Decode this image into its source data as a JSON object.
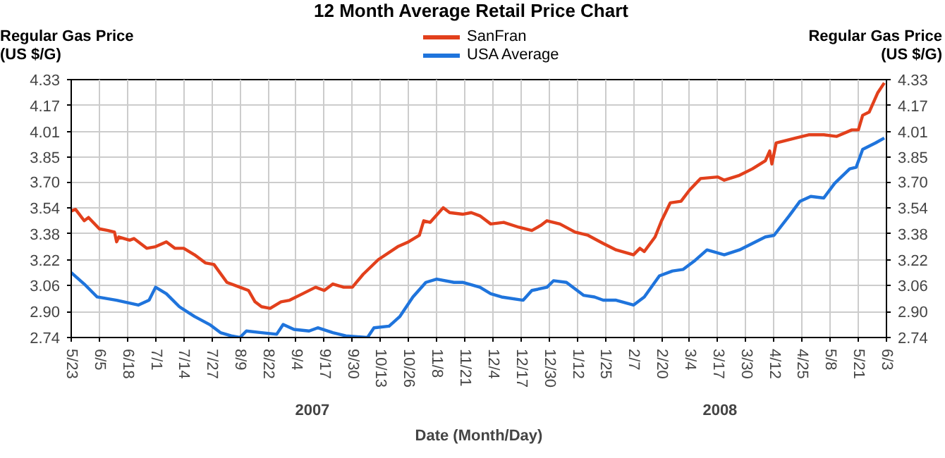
{
  "chart_data": {
    "type": "line",
    "title": "12 Month Average Retail Price Chart",
    "xlabel": "Date (Month/Day)",
    "ylabel": "Regular Gas Price (US $/G)",
    "y2label": "Regular Gas Price (US $/G)",
    "annotations": [
      "2007",
      "2008"
    ],
    "xlim": [
      "2007-05-23",
      "2008-06-03"
    ],
    "xticks": [
      {
        "value": "2007-05-23",
        "label": "5/23"
      },
      {
        "value": "2007-06-05",
        "label": "6/5"
      },
      {
        "value": "2007-06-18",
        "label": "6/18"
      },
      {
        "value": "2007-07-01",
        "label": "7/1"
      },
      {
        "value": "2007-07-14",
        "label": "7/14"
      },
      {
        "value": "2007-07-27",
        "label": "7/27"
      },
      {
        "value": "2007-08-09",
        "label": "8/9"
      },
      {
        "value": "2007-08-22",
        "label": "8/22"
      },
      {
        "value": "2007-09-04",
        "label": "9/4"
      },
      {
        "value": "2007-09-17",
        "label": "9/17"
      },
      {
        "value": "2007-09-30",
        "label": "9/30"
      },
      {
        "value": "2007-10-13",
        "label": "10/13"
      },
      {
        "value": "2007-10-26",
        "label": "10/26"
      },
      {
        "value": "2007-11-08",
        "label": "11/8"
      },
      {
        "value": "2007-11-21",
        "label": "11/21"
      },
      {
        "value": "2007-12-04",
        "label": "12/4"
      },
      {
        "value": "2007-12-17",
        "label": "12/17"
      },
      {
        "value": "2007-12-30",
        "label": "12/30"
      },
      {
        "value": "2008-01-12",
        "label": "1/12"
      },
      {
        "value": "2008-01-25",
        "label": "1/25"
      },
      {
        "value": "2008-02-07",
        "label": "2/7"
      },
      {
        "value": "2008-02-20",
        "label": "2/20"
      },
      {
        "value": "2008-03-04",
        "label": "3/4"
      },
      {
        "value": "2008-03-17",
        "label": "3/17"
      },
      {
        "value": "2008-03-30",
        "label": "3/30"
      },
      {
        "value": "2008-04-12",
        "label": "4/12"
      },
      {
        "value": "2008-04-25",
        "label": "4/25"
      },
      {
        "value": "2008-05-08",
        "label": "5/8"
      },
      {
        "value": "2008-05-21",
        "label": "5/21"
      },
      {
        "value": "2008-06-03",
        "label": "6/3"
      }
    ],
    "ylim": [
      2.74,
      4.33
    ],
    "yticks": [
      2.74,
      {
        "value": 2.9,
        "label": "2.90"
      },
      3.06,
      3.22,
      3.38,
      3.54,
      {
        "value": 3.7,
        "label": "3.70"
      },
      3.85,
      4.01,
      4.17,
      4.33
    ],
    "y2lim": [
      2.74,
      4.33
    ],
    "y2ticks": [
      2.74,
      {
        "value": 2.9,
        "label": "2.90"
      },
      3.06,
      3.22,
      3.38,
      3.54,
      {
        "value": 3.7,
        "label": "3.70"
      },
      3.85,
      4.01,
      4.17,
      4.33
    ],
    "grid": true,
    "legend": "top right",
    "line_style": "solid",
    "series": [
      {
        "name": "SanFran",
        "color": "#e2401c",
        "x": [
          "2007-05-23",
          "2007-05-25",
          "2007-05-29",
          "2007-05-31",
          "2007-06-05",
          "2007-06-09",
          "2007-06-12",
          "2007-06-13",
          "2007-06-14",
          "2007-06-19",
          "2007-06-21",
          "2007-06-27",
          "2007-07-01",
          "2007-07-06",
          "2007-07-10",
          "2007-07-14",
          "2007-07-19",
          "2007-07-24",
          "2007-07-28",
          "2007-08-03",
          "2007-08-09",
          "2007-08-13",
          "2007-08-16",
          "2007-08-19",
          "2007-08-23",
          "2007-08-28",
          "2007-09-01",
          "2007-09-07",
          "2007-09-13",
          "2007-09-17",
          "2007-09-21",
          "2007-09-26",
          "2007-09-30",
          "2007-10-05",
          "2007-10-12",
          "2007-10-21",
          "2007-10-26",
          "2007-10-31",
          "2007-11-02",
          "2007-11-05",
          "2007-11-11",
          "2007-11-14",
          "2007-11-20",
          "2007-11-24",
          "2007-11-28",
          "2007-12-03",
          "2007-12-09",
          "2007-12-16",
          "2007-12-22",
          "2007-12-26",
          "2007-12-29",
          "2008-01-04",
          "2008-01-11",
          "2008-01-17",
          "2008-01-24",
          "2008-01-30",
          "2008-02-07",
          "2008-02-10",
          "2008-02-12",
          "2008-02-17",
          "2008-02-20",
          "2008-02-24",
          "2008-02-29",
          "2008-03-04",
          "2008-03-09",
          "2008-03-17",
          "2008-03-20",
          "2008-03-27",
          "2008-04-02",
          "2008-04-08",
          "2008-04-10",
          "2008-04-11",
          "2008-04-13",
          "2008-04-22",
          "2008-04-28",
          "2008-05-05",
          "2008-05-11",
          "2008-05-18",
          "2008-05-21",
          "2008-05-23",
          "2008-05-26",
          "2008-05-30",
          "2008-06-02"
        ],
        "values": [
          3.52,
          3.53,
          3.46,
          3.48,
          3.41,
          3.4,
          3.39,
          3.33,
          3.36,
          3.34,
          3.35,
          3.29,
          3.3,
          3.33,
          3.29,
          3.29,
          3.25,
          3.2,
          3.19,
          3.08,
          3.05,
          3.03,
          2.96,
          2.93,
          2.92,
          2.96,
          2.97,
          3.01,
          3.05,
          3.03,
          3.07,
          3.05,
          3.05,
          3.13,
          3.22,
          3.3,
          3.33,
          3.37,
          3.46,
          3.45,
          3.54,
          3.51,
          3.5,
          3.51,
          3.49,
          3.44,
          3.45,
          3.42,
          3.4,
          3.43,
          3.46,
          3.44,
          3.39,
          3.37,
          3.32,
          3.28,
          3.25,
          3.29,
          3.27,
          3.36,
          3.46,
          3.57,
          3.58,
          3.65,
          3.72,
          3.73,
          3.71,
          3.74,
          3.78,
          3.83,
          3.89,
          3.81,
          3.94,
          3.97,
          3.99,
          3.99,
          3.98,
          4.02,
          4.02,
          4.11,
          4.13,
          4.25,
          4.31
        ]
      },
      {
        "name": "USA Average",
        "color": "#1f74dc",
        "x": [
          "2007-05-23",
          "2007-05-29",
          "2007-06-04",
          "2007-06-13",
          "2007-06-23",
          "2007-06-28",
          "2007-07-01",
          "2007-07-06",
          "2007-07-12",
          "2007-07-19",
          "2007-07-26",
          "2007-07-31",
          "2007-08-05",
          "2007-08-09",
          "2007-08-12",
          "2007-08-19",
          "2007-08-26",
          "2007-08-29",
          "2007-09-03",
          "2007-09-10",
          "2007-09-14",
          "2007-09-21",
          "2007-09-27",
          "2007-10-07",
          "2007-10-10",
          "2007-10-17",
          "2007-10-22",
          "2007-10-28",
          "2007-11-03",
          "2007-11-08",
          "2007-11-16",
          "2007-11-20",
          "2007-11-28",
          "2007-12-03",
          "2007-12-08",
          "2007-12-18",
          "2007-12-22",
          "2007-12-29",
          "2008-01-01",
          "2008-01-07",
          "2008-01-15",
          "2008-01-20",
          "2008-01-24",
          "2008-01-30",
          "2008-02-07",
          "2008-02-12",
          "2008-02-19",
          "2008-02-25",
          "2008-03-01",
          "2008-03-06",
          "2008-03-12",
          "2008-03-20",
          "2008-03-27",
          "2008-04-02",
          "2008-04-08",
          "2008-04-12",
          "2008-04-19",
          "2008-04-24",
          "2008-04-29",
          "2008-05-05",
          "2008-05-10",
          "2008-05-17",
          "2008-05-20",
          "2008-05-23",
          "2008-05-29",
          "2008-06-02"
        ],
        "values": [
          3.14,
          3.07,
          2.99,
          2.97,
          2.94,
          2.97,
          3.05,
          3.01,
          2.93,
          2.87,
          2.82,
          2.77,
          2.75,
          2.74,
          2.78,
          2.77,
          2.76,
          2.82,
          2.79,
          2.78,
          2.8,
          2.77,
          2.75,
          2.74,
          2.8,
          2.81,
          2.87,
          2.99,
          3.08,
          3.1,
          3.08,
          3.08,
          3.05,
          3.01,
          2.99,
          2.97,
          3.03,
          3.05,
          3.09,
          3.08,
          3.0,
          2.99,
          2.97,
          2.97,
          2.94,
          2.99,
          3.12,
          3.15,
          3.16,
          3.21,
          3.28,
          3.25,
          3.28,
          3.32,
          3.36,
          3.37,
          3.49,
          3.58,
          3.61,
          3.6,
          3.69,
          3.78,
          3.79,
          3.9,
          3.94,
          3.97
        ]
      }
    ]
  }
}
